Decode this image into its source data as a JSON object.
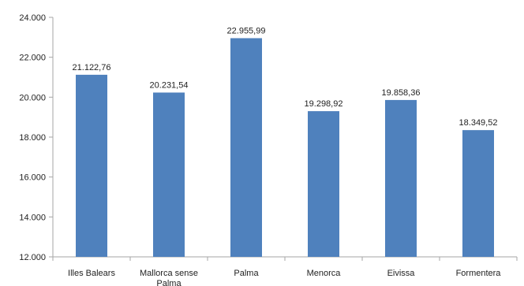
{
  "chart_data": {
    "type": "bar",
    "categories": [
      "Illes Balears",
      "Mallorca sense Palma",
      "Palma",
      "Menorca",
      "Eivissa",
      "Formentera"
    ],
    "values": [
      21122.76,
      20231.54,
      22955.99,
      19298.92,
      19858.36,
      18349.52
    ],
    "value_labels": [
      "21.122,76",
      "20.231,54",
      "22.955,99",
      "19.298,92",
      "19.858,36",
      "18.349,52"
    ],
    "yticks": [
      12000,
      14000,
      16000,
      18000,
      20000,
      22000,
      24000
    ],
    "ytick_labels": [
      "12.000",
      "14.000",
      "16.000",
      "18.000",
      "20.000",
      "22.000",
      "24.000"
    ],
    "ylim": [
      12000,
      24000
    ],
    "grid": false,
    "bar_color": "#4f81bd",
    "axis_color": "#a6a6a6"
  }
}
